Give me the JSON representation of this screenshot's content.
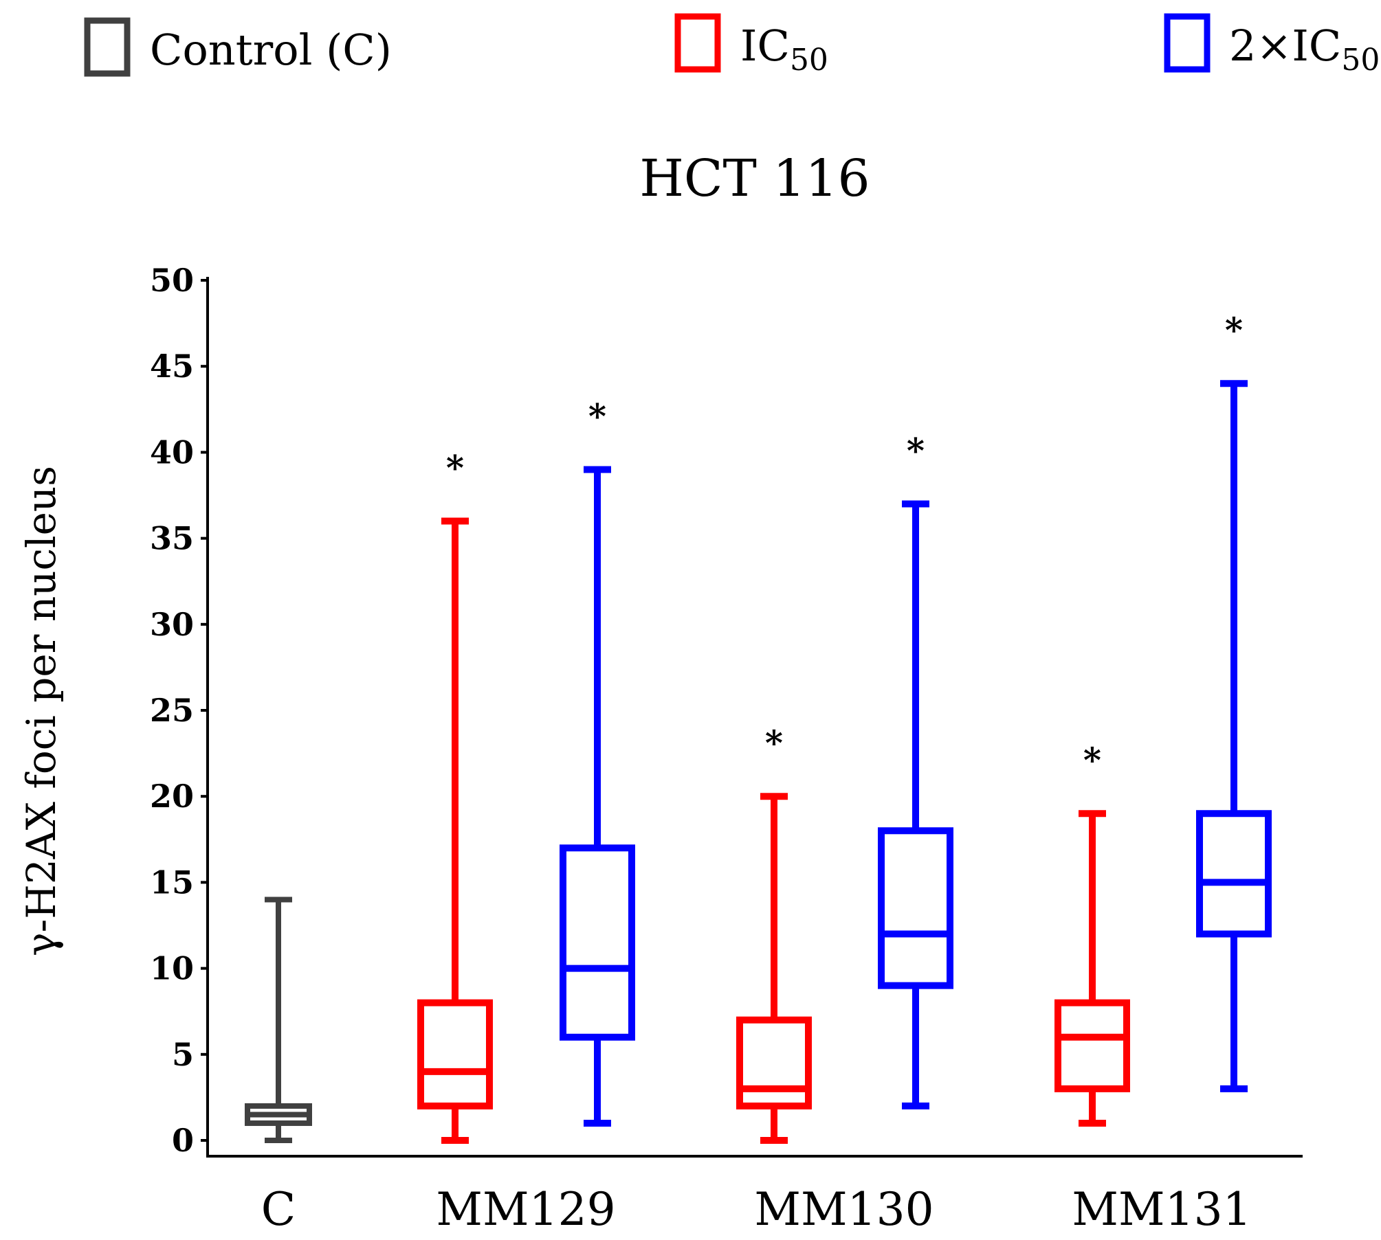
{
  "chart_data": {
    "type": "box",
    "title": "HCT 116",
    "ylabel": "γ-H2AX foci per nucleus",
    "xlabel": "",
    "ylim": [
      0,
      50
    ],
    "yticks": [
      0,
      5,
      10,
      15,
      20,
      25,
      30,
      35,
      40,
      45,
      50
    ],
    "categories": [
      "C",
      "MM129",
      "MM130",
      "MM131"
    ],
    "legend": [
      {
        "key": "control",
        "label": "Control (C)",
        "color": "#404040"
      },
      {
        "key": "ic50",
        "label_main": "IC",
        "label_sub": "50",
        "color": "#ff0000"
      },
      {
        "key": "ic50x2",
        "label_main": "2×IC",
        "label_sub": "50",
        "color": "#0000ff"
      }
    ],
    "boxes": [
      {
        "category": "C",
        "series": "control",
        "min": 0,
        "q1": 1,
        "median": 1.5,
        "q3": 2,
        "max": 14,
        "significant": false
      },
      {
        "category": "MM129",
        "series": "ic50",
        "min": 0,
        "q1": 2,
        "median": 4,
        "q3": 8,
        "max": 36,
        "significant": true
      },
      {
        "category": "MM129",
        "series": "ic50x2",
        "min": 1,
        "q1": 6,
        "median": 10,
        "q3": 17,
        "max": 39,
        "significant": true
      },
      {
        "category": "MM130",
        "series": "ic50",
        "min": 0,
        "q1": 2,
        "median": 3,
        "q3": 7,
        "max": 20,
        "significant": true
      },
      {
        "category": "MM130",
        "series": "ic50x2",
        "min": 2,
        "q1": 9,
        "median": 12,
        "q3": 18,
        "max": 37,
        "significant": true
      },
      {
        "category": "MM131",
        "series": "ic50",
        "min": 1,
        "q1": 3,
        "median": 6,
        "q3": 8,
        "max": 19,
        "significant": true
      },
      {
        "category": "MM131",
        "series": "ic50x2",
        "min": 3,
        "q1": 12,
        "median": 15,
        "q3": 19,
        "max": 44,
        "significant": true
      }
    ],
    "significance_marker": "*"
  }
}
